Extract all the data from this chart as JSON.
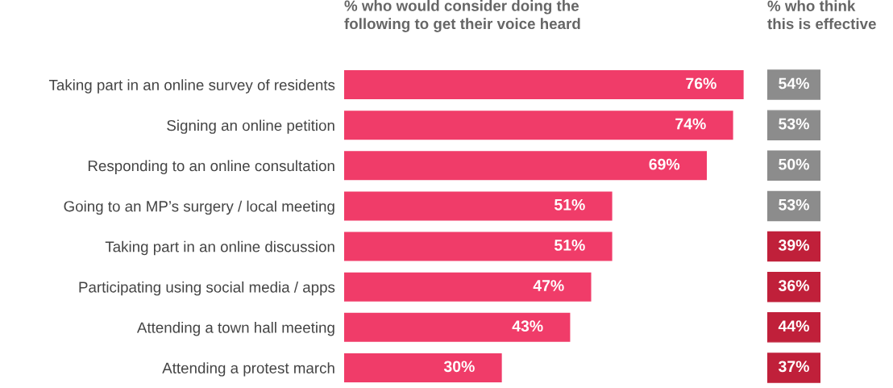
{
  "chart_data": [
    {
      "type": "bar",
      "orientation": "horizontal",
      "title": "% who would consider doing the\nfollowing to get their voice heard",
      "categories": [
        "Taking part in an online survey of residents",
        "Signing an online petition",
        "Responding to an online consultation",
        "Going to an MP’s surgery / local meeting",
        "Taking part in an online discussion",
        "Participating using social media / apps",
        "Attending a town hall meeting",
        "Attending a protest march"
      ],
      "values": [
        76,
        74,
        69,
        51,
        51,
        47,
        43,
        30
      ],
      "value_labels": [
        "76%",
        "74%",
        "69%",
        "51%",
        "51%",
        "47%",
        "43%",
        "30%"
      ],
      "color": "#f03c69",
      "grid": false,
      "legend": false
    },
    {
      "type": "other",
      "title": "% who think\nthis is effective",
      "values": [
        54,
        53,
        50,
        53,
        39,
        36,
        44,
        37
      ],
      "value_labels": [
        "54%",
        "53%",
        "50%",
        "53%",
        "39%",
        "36%",
        "44%",
        "37%"
      ],
      "colors": [
        "#8c8c8c",
        "#8c8c8c",
        "#8c8c8c",
        "#8c8c8c",
        "#c0203a",
        "#c0203a",
        "#c0203a",
        "#c0203a"
      ]
    }
  ]
}
